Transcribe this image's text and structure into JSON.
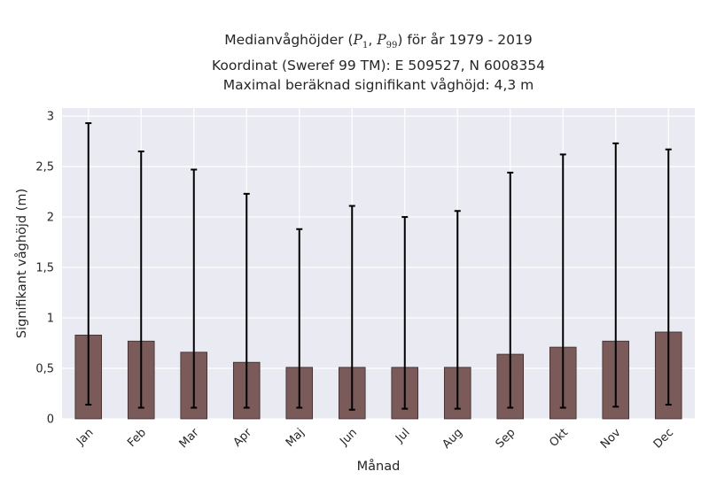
{
  "chart_data": {
    "type": "bar",
    "title_lines": [
      "Medianvåghöjder (P1, P99) för år 1979 - 2019",
      "Koordinat (Sweref 99 TM): E 509527, N 6008354",
      "Maximal beräknad signifikant våghöjd: 4,3 m"
    ],
    "title_parts": {
      "prefix": "Medianvåghöjder (",
      "p1_letter": "P",
      "p1_sub": "1",
      "sep": ", ",
      "p99_letter": "P",
      "p99_sub": "99",
      "suffix": ") för år 1979 - 2019"
    },
    "xlabel": "Månad",
    "ylabel": "Signifikant våghöjd (m)",
    "categories": [
      "Jan",
      "Feb",
      "Mar",
      "Apr",
      "Maj",
      "Jun",
      "Jul",
      "Aug",
      "Sep",
      "Okt",
      "Nov",
      "Dec"
    ],
    "values": [
      0.83,
      0.77,
      0.66,
      0.56,
      0.51,
      0.51,
      0.51,
      0.51,
      0.64,
      0.71,
      0.77,
      0.86
    ],
    "error_low": [
      0.14,
      0.11,
      0.11,
      0.11,
      0.11,
      0.09,
      0.1,
      0.1,
      0.11,
      0.11,
      0.12,
      0.14
    ],
    "error_high": [
      2.93,
      2.65,
      2.47,
      2.23,
      1.88,
      2.11,
      2.0,
      2.06,
      2.44,
      2.62,
      2.73,
      2.67
    ],
    "ylim": [
      0,
      3.08
    ],
    "yticks": [
      0,
      0.5,
      1,
      1.5,
      2,
      2.5,
      3
    ],
    "ytick_labels": [
      "0",
      "0,5",
      "1",
      "1,5",
      "2",
      "2,5",
      "3"
    ],
    "grid": true,
    "colors": {
      "bar": "#7b5a5a",
      "bar_edge": "#3a2a2a",
      "error": "#000000",
      "background": "#eaeaf2",
      "grid": "#ffffff"
    }
  }
}
